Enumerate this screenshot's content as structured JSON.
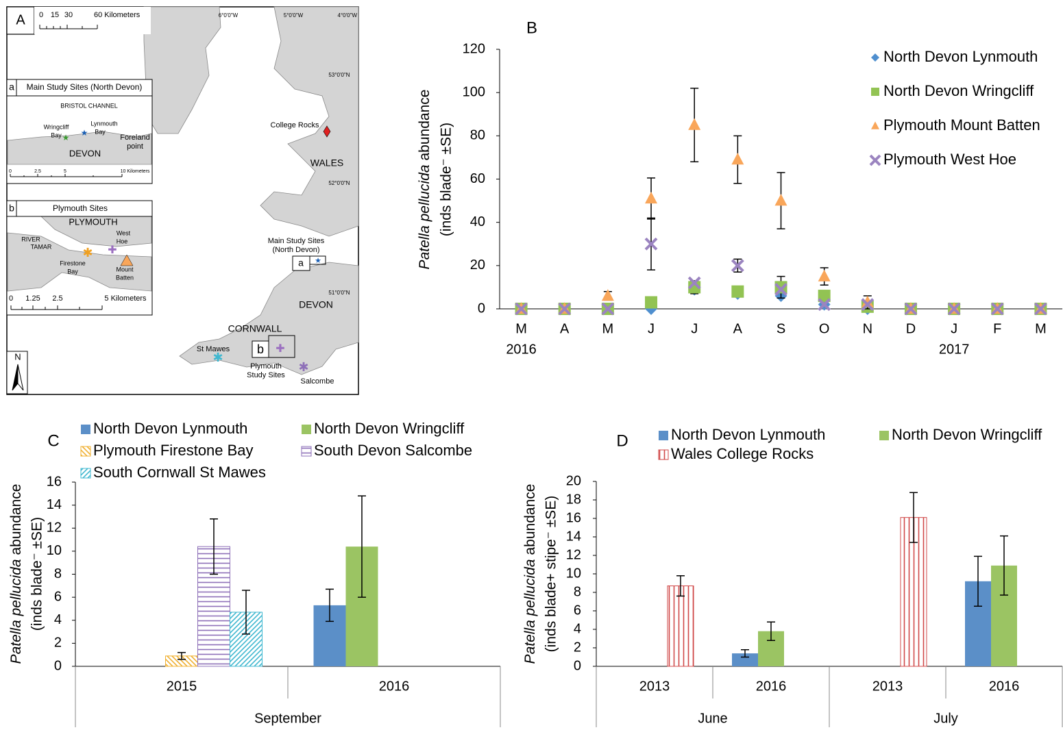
{
  "map": {
    "panel": "A",
    "scale": [
      "0",
      "15",
      "30",
      "60 Kilometers"
    ],
    "graticule": [
      "6°0'0\"W",
      "5°0'0\"W",
      "4°0'0\"W",
      "53°0'0\"N",
      "52°0'0\"N",
      "51°0'0\"N"
    ],
    "college_rocks": "College Rocks",
    "wales": "WALES",
    "main_sites": [
      "Main Study Sites",
      "(North Devon)"
    ],
    "box_a": "a",
    "devon": "DEVON",
    "cornwall": "CORNWALL",
    "st_mawes": "St Mawes",
    "box_b": "b",
    "plymouth_sites": [
      "Plymouth",
      "Study Sites"
    ],
    "salcombe": "Salcombe",
    "north": "N",
    "inset_a": {
      "tag": "a",
      "title": "Main Study Sites (North Devon)",
      "sea": "BRISTOL CHANNEL",
      "wringcliff": [
        "Wringcliff",
        "Bay"
      ],
      "lynmouth": [
        "Lynmouth",
        "Bay"
      ],
      "devon": "DEVON",
      "foreland": [
        "Foreland",
        "point"
      ],
      "scale": [
        "0",
        "2.5",
        "5",
        "10 Kilometers"
      ]
    },
    "inset_b": {
      "tag": "b",
      "title": "Plymouth Sites",
      "plymouth": "PLYMOUTH",
      "tamar": [
        "RIVER",
        "TAMAR"
      ],
      "firestone": [
        "Firestone",
        "Bay"
      ],
      "west_hoe": [
        "West",
        "Hoe"
      ],
      "mount_batten": [
        "Mount",
        "Batten"
      ],
      "scale": [
        "0",
        "1.25",
        "2.5",
        "5 Kilometers"
      ]
    }
  },
  "chart_data": [
    {
      "type": "scatter",
      "label": "B",
      "y_label": [
        "Patella pellucida",
        "abundance",
        "(inds blade⁻ ±SE)"
      ],
      "categories": [
        "M",
        "A",
        "M",
        "J",
        "J",
        "A",
        "S",
        "O",
        "N",
        "D",
        "J",
        "F",
        "M"
      ],
      "year_labels": [
        "2016",
        null,
        null,
        null,
        null,
        null,
        null,
        null,
        null,
        null,
        "2017",
        null,
        null
      ],
      "ylim": [
        0,
        120
      ],
      "yticks": [
        0,
        20,
        40,
        60,
        80,
        100,
        120
      ],
      "series": [
        {
          "name": "North Devon Lynmouth",
          "color": "#4f8fcf",
          "marker": "diamond",
          "values": [
            0,
            0,
            0,
            0,
            9,
            7,
            6,
            2,
            0,
            0,
            0,
            0,
            0
          ],
          "errors": [
            null,
            null,
            null,
            null,
            null,
            null,
            null,
            null,
            null,
            null,
            null,
            null,
            null
          ]
        },
        {
          "name": "North Devon Wringcliff",
          "color": "#92c353",
          "marker": "square",
          "values": [
            0,
            0,
            0,
            3,
            10,
            8,
            10,
            6,
            1,
            0,
            0,
            0,
            0
          ],
          "errors": [
            null,
            null,
            null,
            null,
            3,
            null,
            5,
            null,
            null,
            null,
            null,
            null,
            null
          ]
        },
        {
          "name": "Plymouth Mount Batten",
          "color": "#f9a65a",
          "marker": "triangle",
          "values": [
            0,
            0,
            6,
            51,
            85,
            69,
            50,
            15,
            3,
            0,
            0,
            0,
            0
          ],
          "errors": [
            null,
            null,
            2,
            9.5,
            17,
            11,
            13,
            4,
            3,
            null,
            null,
            null,
            null
          ]
        },
        {
          "name": "Plymouth West Hoe",
          "color": "#9b84c0",
          "marker": "x",
          "values": [
            0,
            0,
            0,
            30,
            12,
            20,
            9,
            2,
            2,
            0,
            0,
            0,
            0
          ],
          "errors": [
            null,
            null,
            null,
            12,
            null,
            3,
            null,
            null,
            null,
            null,
            null,
            null,
            null
          ]
        }
      ]
    },
    {
      "type": "bar",
      "label": "C",
      "y_label": [
        "Patella pellucida",
        "abundance",
        "(inds blade⁻ ±SE)"
      ],
      "categories": [
        "2015",
        "2016"
      ],
      "groups": [
        "September"
      ],
      "ylim": [
        0,
        16
      ],
      "yticks": [
        0,
        2,
        4,
        6,
        8,
        10,
        12,
        14,
        16
      ],
      "series": [
        {
          "name": "North Devon Lynmouth",
          "color": "#5b8fc8",
          "values": [
            null,
            5.3
          ],
          "errors": [
            null,
            1.4
          ]
        },
        {
          "name": "North Devon Wringcliff",
          "color": "#9bc463",
          "values": [
            null,
            10.4
          ],
          "errors": [
            null,
            4.4
          ]
        },
        {
          "name": "Plymouth Firestone Bay",
          "color": "#f0b030",
          "pattern": "diagonal-back",
          "values": [
            0.9,
            null
          ],
          "errors": [
            0.3,
            null
          ]
        },
        {
          "name": "South Devon Salcombe",
          "color": "#8e70b8",
          "pattern": "horizontal",
          "values": [
            10.4,
            null
          ],
          "errors": [
            2.4,
            null
          ]
        },
        {
          "name": "South Cornwall St Mawes",
          "color": "#40b8d0",
          "pattern": "diagonal",
          "values": [
            4.7,
            null
          ],
          "errors": [
            1.9,
            null
          ]
        }
      ]
    },
    {
      "type": "bar",
      "label": "D",
      "y_label": [
        "Patella pellucida",
        "abundance",
        "(inds blade+ stipe⁻ ±SE)"
      ],
      "categories": [
        "2013",
        "2016",
        "2013",
        "2016"
      ],
      "groups": [
        "June",
        "July"
      ],
      "ylim": [
        0,
        20
      ],
      "yticks": [
        0,
        2,
        4,
        6,
        8,
        10,
        12,
        14,
        16,
        18,
        20
      ],
      "series": [
        {
          "name": "North Devon Lynmouth",
          "color": "#5b8fc8",
          "values": [
            null,
            1.4,
            null,
            9.2
          ],
          "errors": [
            null,
            0.4,
            null,
            2.7
          ]
        },
        {
          "name": "North Devon Wringcliff",
          "color": "#9bc463",
          "values": [
            null,
            3.8,
            null,
            10.9
          ],
          "errors": [
            null,
            1.0,
            null,
            3.2
          ]
        },
        {
          "name": "Wales College Rocks",
          "color": "#d04848",
          "pattern": "vertical",
          "values": [
            8.7,
            null,
            16.1,
            null
          ],
          "errors": [
            1.1,
            null,
            2.7,
            null
          ]
        }
      ]
    }
  ]
}
